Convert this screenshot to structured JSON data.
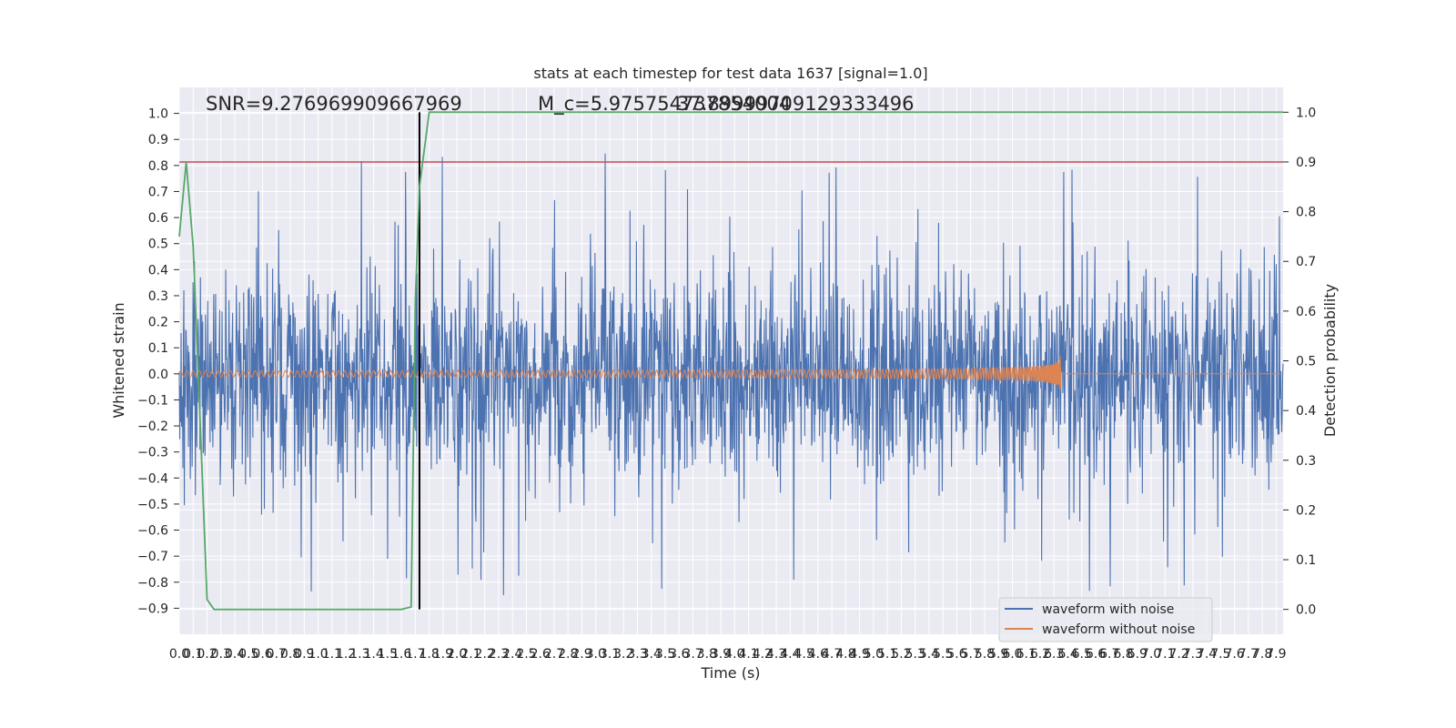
{
  "chart_data": {
    "type": "line",
    "title": "stats at each timestep for test data 1637 [signal=1.0]",
    "xlabel": "Time (s)",
    "ylabel": "Whitened strain",
    "ylabel_right": "Detection probability",
    "xlim": [
      0.0,
      7.95
    ],
    "ylim": [
      -1.0,
      1.1
    ],
    "ylim_right": [
      -0.05,
      1.05
    ],
    "x_ticks": [
      0.0,
      0.1,
      0.2,
      0.3,
      0.4,
      0.5,
      0.6,
      0.7,
      0.8,
      0.9,
      1.0,
      1.1,
      1.2,
      1.3,
      1.4,
      1.5,
      1.6,
      1.7,
      1.8,
      1.9,
      2.0,
      2.1,
      2.2,
      2.3,
      2.4,
      2.5,
      2.6,
      2.7,
      2.8,
      2.9,
      3.0,
      3.1,
      3.2,
      3.3,
      3.4,
      3.5,
      3.6,
      3.7,
      3.8,
      3.9,
      4.0,
      4.1,
      4.2,
      4.3,
      4.4,
      4.5,
      4.6,
      4.7,
      4.8,
      4.9,
      5.0,
      5.1,
      5.2,
      5.3,
      5.4,
      5.5,
      5.6,
      5.7,
      5.8,
      5.9,
      6.0,
      6.1,
      6.2,
      6.3,
      6.4,
      6.5,
      6.6,
      6.7,
      6.8,
      6.9,
      7.0,
      7.1,
      7.2,
      7.3,
      7.4,
      7.5,
      7.6,
      7.7,
      7.8,
      7.9
    ],
    "y_ticks": [
      -0.9,
      -0.8,
      -0.7,
      -0.6,
      -0.5,
      -0.4,
      -0.3,
      -0.2,
      -0.1,
      0.0,
      0.1,
      0.2,
      0.3,
      0.4,
      0.5,
      0.6,
      0.7,
      0.8,
      0.9,
      1.0
    ],
    "y_ticks_right": [
      0.0,
      0.1,
      0.2,
      0.3,
      0.4,
      0.5,
      0.6,
      0.7,
      0.8,
      0.9,
      1.0
    ],
    "annotations": [
      "SNR=9.276969909667969",
      "M_c=5.975754737854004",
      "37.89999709129333496"
    ],
    "threshold": 0.9,
    "detection_time": 1.73,
    "signal_end": 6.35,
    "detection_probability": {
      "x": [
        0.0,
        0.05,
        0.1,
        0.15,
        0.2,
        0.25,
        0.3,
        1.6,
        1.67,
        1.7,
        1.73,
        1.8,
        7.95
      ],
      "y": [
        0.75,
        0.9,
        0.73,
        0.38,
        0.02,
        0.0,
        0.0,
        0.0,
        0.005,
        0.62,
        0.85,
        1.0,
        1.0
      ]
    },
    "series": [
      {
        "name": "waveform with noise",
        "color": "#4c72b0"
      },
      {
        "name": "waveform without noise",
        "color": "#dd8452"
      }
    ],
    "colors": {
      "background": "#eaeaf2",
      "grid": "#ffffff",
      "threshold": "#c44e52",
      "probability": "#55a868",
      "detection_line": "#000000"
    },
    "grid": true,
    "legend_position": "lower-right"
  }
}
